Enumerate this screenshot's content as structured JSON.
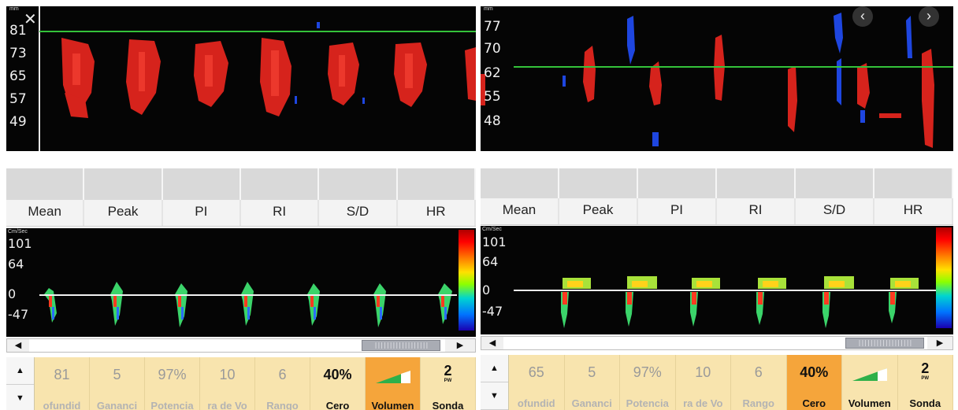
{
  "left": {
    "mmode": {
      "unit": "mm",
      "ticks": [
        "81",
        "73",
        "65",
        "57",
        "49"
      ],
      "close_glyph": "✕"
    },
    "measurements": [
      "Mean",
      "Peak",
      "PI",
      "RI",
      "S/D",
      "HR"
    ],
    "spectral": {
      "unit": "Cm/Sec",
      "ticks": [
        "101",
        "64",
        "0",
        "-47"
      ]
    },
    "scrollbar": {
      "left_glyph": "◀",
      "right_glyph": "▶",
      "thumb_glyph": "||||||||||||||||||"
    },
    "controls": {
      "up_glyph": "▲",
      "down_glyph": "▼",
      "items": [
        {
          "value": "81",
          "label": "ofundid"
        },
        {
          "value": "5",
          "label": "Gananci"
        },
        {
          "value": "97%",
          "label": "Potencia"
        },
        {
          "value": "10",
          "label": "ra de Vo"
        },
        {
          "value": "6",
          "label": "Rango"
        },
        {
          "value": "40%",
          "label": "Cero"
        },
        {
          "value": "",
          "label": "Volumen"
        },
        {
          "value": "2",
          "sub": "PW",
          "label": "Sonda"
        }
      ]
    }
  },
  "right": {
    "mmode": {
      "unit": "mm",
      "ticks": [
        "77",
        "70",
        "62",
        "55",
        "48"
      ],
      "prev_glyph": "‹",
      "next_glyph": "›"
    },
    "measurements": [
      "Mean",
      "Peak",
      "PI",
      "RI",
      "S/D",
      "HR"
    ],
    "spectral": {
      "unit": "Cm/Sec",
      "ticks": [
        "101",
        "64",
        "0",
        "-47"
      ]
    },
    "scrollbar": {
      "left_glyph": "◀",
      "right_glyph": "▶",
      "thumb_glyph": "||||||||||||||||||"
    },
    "controls": {
      "up_glyph": "▲",
      "down_glyph": "▼",
      "items": [
        {
          "value": "65",
          "label": "ofundid"
        },
        {
          "value": "5",
          "label": "Gananci"
        },
        {
          "value": "97%",
          "label": "Potencia"
        },
        {
          "value": "10",
          "label": "ra de Vo"
        },
        {
          "value": "6",
          "label": "Rango"
        },
        {
          "value": "40%",
          "label": "Cero"
        },
        {
          "value": "",
          "label": "Volumen"
        },
        {
          "value": "2",
          "sub": "PW",
          "label": "Sonda"
        }
      ]
    }
  },
  "colors": {
    "flow_toward": "#e8261e",
    "flow_away": "#1e46e0",
    "gate_line": "#34c23a",
    "control_bg": "#f8e4ae",
    "control_active": "#f5a53b"
  }
}
